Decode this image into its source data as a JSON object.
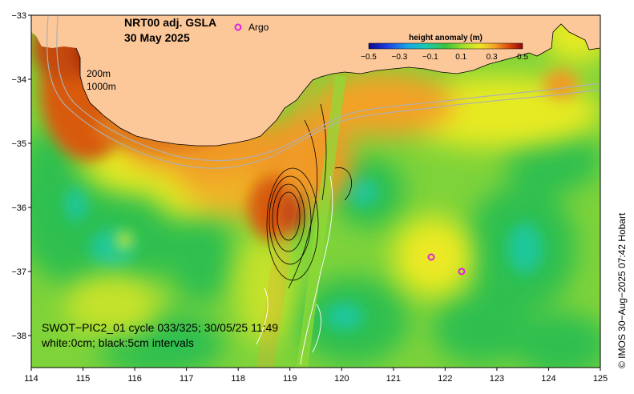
{
  "title": {
    "line1": "NRT00 adj. GSLA",
    "line2": "30 May 2025"
  },
  "legend": {
    "argo_label": "Argo",
    "argo_color": "#e020e0"
  },
  "depth_labels": [
    "200m",
    "1000m"
  ],
  "colorbar": {
    "label": "height anomaly (m)",
    "ticks": [
      "−0.5",
      "−0.3",
      "−0.1",
      "0.1",
      "0.3",
      "0.5"
    ]
  },
  "annotation": {
    "line1": "SWOT−PIC2_01 cycle 033/325; 30/05/25 11:49",
    "line2": "white:0cm; black:5cm intervals"
  },
  "credit": "© IMOS 30−Aug−2025 07:42 Hobart",
  "axes": {
    "x_ticks": [
      "114",
      "115",
      "116",
      "117",
      "118",
      "119",
      "120",
      "121",
      "122",
      "123",
      "124",
      "125"
    ],
    "y_ticks": [
      "−33",
      "−34",
      "−35",
      "−36",
      "−37",
      "−38"
    ],
    "lon_range": [
      114,
      125
    ],
    "lat_range": [
      -38.5,
      -33
    ]
  },
  "colors": {
    "land": "#fcc89a",
    "ocean_base": "#7fd33a",
    "low_green": "#2dbf4f",
    "teal": "#1ec79a",
    "yellow": "#e6ea22",
    "orange": "#f09a26",
    "dark_orange": "#d85a0c",
    "dark_red": "#a01a04"
  }
}
